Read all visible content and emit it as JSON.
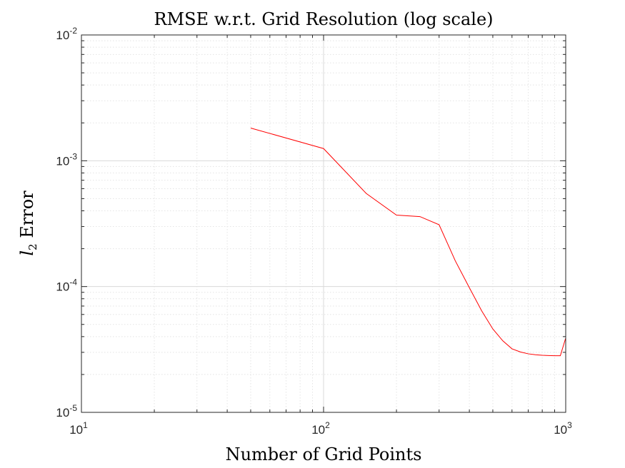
{
  "chart_data": {
    "type": "line",
    "title": "RMSE w.r.t. Grid Resolution (log scale)",
    "xlabel": "Number of Grid Points",
    "ylabel": {
      "var": "l",
      "sub": "2",
      "rest": " Error"
    },
    "xscale": "log",
    "yscale": "log",
    "xlim": [
      10,
      1000
    ],
    "ylim": [
      1e-05,
      0.01
    ],
    "grid": true,
    "minor_grid": true,
    "x_ticks": [
      {
        "value": 10,
        "base": "10",
        "exp": "1"
      },
      {
        "value": 100,
        "base": "10",
        "exp": "2"
      },
      {
        "value": 1000,
        "base": "10",
        "exp": "3"
      }
    ],
    "y_ticks": [
      {
        "value": 1e-05,
        "base": "10",
        "exp": "-5"
      },
      {
        "value": 0.0001,
        "base": "10",
        "exp": "-4"
      },
      {
        "value": 0.001,
        "base": "10",
        "exp": "-3"
      },
      {
        "value": 0.01,
        "base": "10",
        "exp": "-2"
      }
    ],
    "series": [
      {
        "color": "#ff0000",
        "x": [
          50,
          100,
          150,
          200,
          250,
          300,
          350,
          400,
          450,
          500,
          550,
          600,
          650,
          700,
          750,
          800,
          850,
          900,
          950,
          1000
        ],
        "y": [
          0.00182,
          0.00125,
          0.00055,
          0.00037,
          0.00036,
          0.00031,
          0.00016,
          9.8e-05,
          6.4e-05,
          4.6e-05,
          3.7e-05,
          3.2e-05,
          3.02e-05,
          2.92e-05,
          2.87e-05,
          2.84e-05,
          2.83e-05,
          2.82e-05,
          2.82e-05,
          3.9e-05
        ]
      }
    ]
  }
}
